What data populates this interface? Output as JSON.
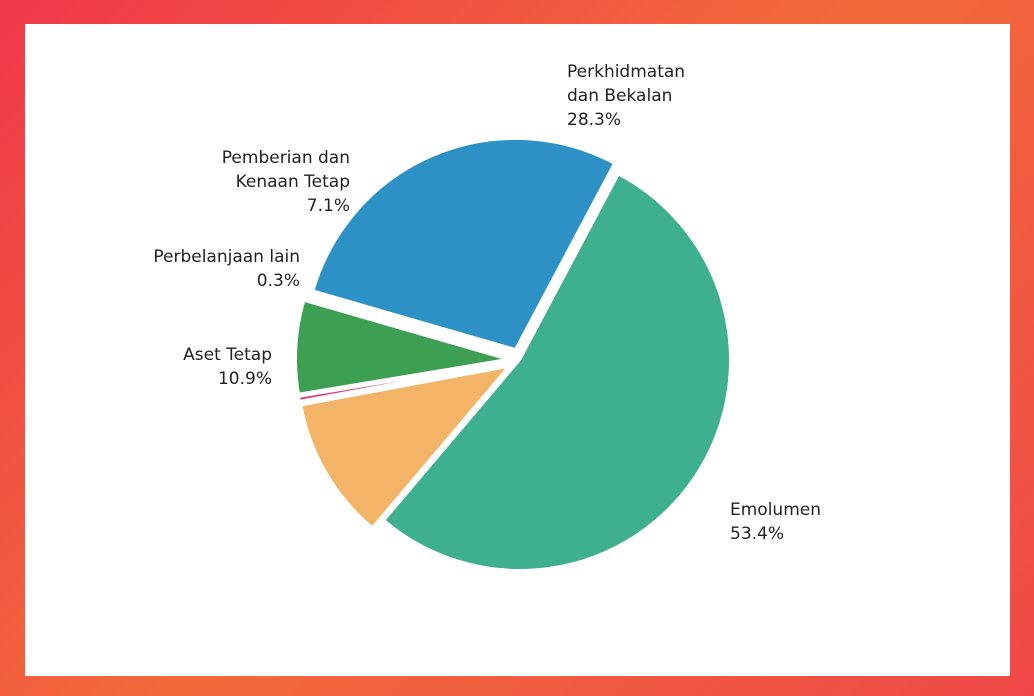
{
  "chart_data": {
    "type": "pie",
    "categories": [
      "Emolumen",
      "Aset Tetap",
      "Perbelanjaan lain",
      "Pemberian dan Kenaan Tetap",
      "Perkhidmatan dan Bekalan"
    ],
    "values": [
      53.4,
      10.9,
      0.3,
      7.1,
      28.3
    ],
    "value_labels": [
      "53.4%",
      "10.9%",
      "0.3%",
      "7.1%",
      "28.3%"
    ],
    "colors": [
      "#3fb08f",
      "#f4b467",
      "#e5336a",
      "#3c9f52",
      "#2d91c6"
    ]
  }
}
